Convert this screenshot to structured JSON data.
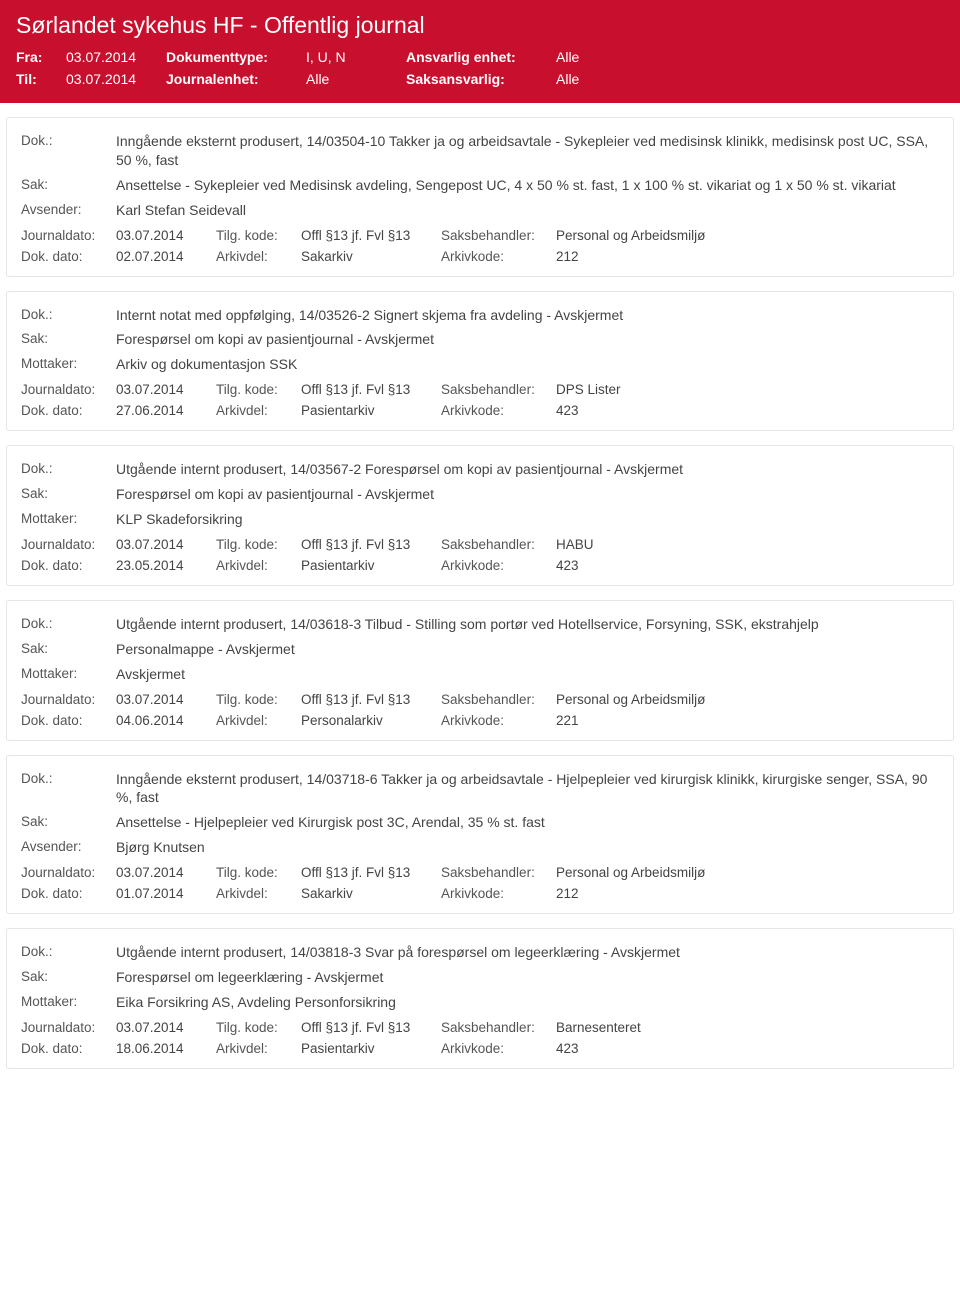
{
  "header": {
    "title": "Sørlandet sykehus HF - Offentlig journal",
    "fra_label": "Fra:",
    "fra_value": "03.07.2014",
    "til_label": "Til:",
    "til_value": "03.07.2014",
    "doktype_label": "Dokumenttype:",
    "doktype_value": "I, U, N",
    "journalenhet_label": "Journalenhet:",
    "journalenhet_value": "Alle",
    "ansvarlig_label": "Ansvarlig enhet:",
    "ansvarlig_value": "Alle",
    "saksansvarlig_label": "Saksansvarlig:",
    "saksansvarlig_value": "Alle"
  },
  "labels": {
    "dok": "Dok.:",
    "sak": "Sak:",
    "avsender": "Avsender:",
    "mottaker": "Mottaker:",
    "journaldato": "Journaldato:",
    "dokdato": "Dok. dato:",
    "tilgkode": "Tilg. kode:",
    "arkivdel": "Arkivdel:",
    "saksbehandler": "Saksbehandler:",
    "arkivkode": "Arkivkode:"
  },
  "entries": [
    {
      "dok": "Inngående eksternt produsert, 14/03504-10 Takker ja og arbeidsavtale - Sykepleier ved medisinsk klinikk, medisinsk post UC, SSA, 50 %, fast",
      "sak": "Ansettelse - Sykepleier ved Medisinsk avdeling, Sengepost UC, 4 x 50 % st. fast, 1 x 100 % st. vikariat og 1 x 50 % st. vikariat",
      "party_label": "Avsender:",
      "party": "Karl Stefan Seidevall",
      "journaldato": "03.07.2014",
      "tilgkode": "Offl §13 jf. Fvl §13",
      "saksbehandler": "Personal og Arbeidsmiljø",
      "dokdato": "02.07.2014",
      "arkivdel": "Sakarkiv",
      "arkivkode": "212"
    },
    {
      "dok": "Internt notat med oppfølging, 14/03526-2 Signert skjema fra avdeling - Avskjermet",
      "sak": "Forespørsel om kopi av pasientjournal - Avskjermet",
      "party_label": "Mottaker:",
      "party": "Arkiv og dokumentasjon SSK",
      "journaldato": "03.07.2014",
      "tilgkode": "Offl §13 jf. Fvl §13",
      "saksbehandler": "DPS Lister",
      "dokdato": "27.06.2014",
      "arkivdel": "Pasientarkiv",
      "arkivkode": "423"
    },
    {
      "dok": "Utgående internt produsert, 14/03567-2 Forespørsel om kopi av pasientjournal - Avskjermet",
      "sak": "Forespørsel om kopi av pasientjournal - Avskjermet",
      "party_label": "Mottaker:",
      "party": "KLP Skadeforsikring",
      "journaldato": "03.07.2014",
      "tilgkode": "Offl §13 jf. Fvl §13",
      "saksbehandler": "HABU",
      "dokdato": "23.05.2014",
      "arkivdel": "Pasientarkiv",
      "arkivkode": "423"
    },
    {
      "dok": "Utgående internt produsert, 14/03618-3 Tilbud - Stilling som portør ved Hotellservice, Forsyning, SSK, ekstrahjelp",
      "sak": "Personalmappe - Avskjermet",
      "party_label": "Mottaker:",
      "party": "Avskjermet",
      "journaldato": "03.07.2014",
      "tilgkode": "Offl §13 jf. Fvl §13",
      "saksbehandler": "Personal og Arbeidsmiljø",
      "dokdato": "04.06.2014",
      "arkivdel": "Personalarkiv",
      "arkivkode": "221"
    },
    {
      "dok": "Inngående eksternt produsert, 14/03718-6 Takker ja og arbeidsavtale - Hjelpepleier ved kirurgisk klinikk, kirurgiske senger, SSA, 90 %, fast",
      "sak": "Ansettelse - Hjelpepleier ved Kirurgisk post 3C, Arendal, 35 % st. fast",
      "party_label": "Avsender:",
      "party": "Bjørg Knutsen",
      "journaldato": "03.07.2014",
      "tilgkode": "Offl §13 jf. Fvl §13",
      "saksbehandler": "Personal og Arbeidsmiljø",
      "dokdato": "01.07.2014",
      "arkivdel": "Sakarkiv",
      "arkivkode": "212"
    },
    {
      "dok": "Utgående internt produsert, 14/03818-3 Svar på forespørsel om legeerklæring - Avskjermet",
      "sak": "Forespørsel om legeerklæring - Avskjermet",
      "party_label": "Mottaker:",
      "party": "Eika Forsikring AS, Avdeling Personforsikring",
      "journaldato": "03.07.2014",
      "tilgkode": "Offl §13 jf. Fvl §13",
      "saksbehandler": "Barnesenteret",
      "dokdato": "18.06.2014",
      "arkivdel": "Pasientarkiv",
      "arkivkode": "423"
    }
  ]
}
